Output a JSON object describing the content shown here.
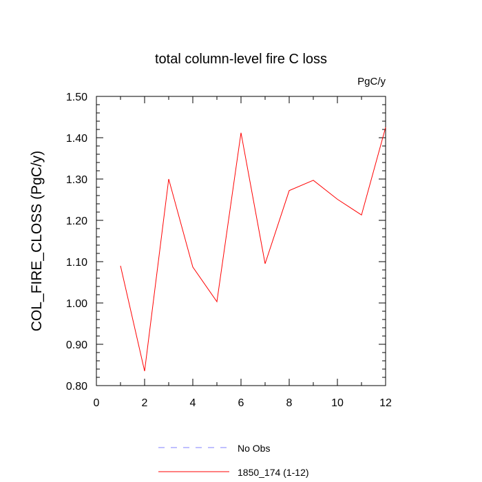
{
  "chart_data": {
    "type": "line",
    "title": "total column-level fire C loss",
    "units_label": "PgC/y",
    "xlabel": "",
    "ylabel": "COL_FIRE_CLOSS  (PgC/y)",
    "xlim": [
      0,
      12
    ],
    "ylim": [
      0.8,
      1.5
    ],
    "x_ticks": [
      0,
      2,
      4,
      6,
      8,
      10,
      12
    ],
    "x_tick_labels": [
      "0",
      "2",
      "4",
      "6",
      "8",
      "10",
      "12"
    ],
    "y_ticks": [
      0.8,
      0.9,
      1.0,
      1.1,
      1.2,
      1.3,
      1.4,
      1.5
    ],
    "y_tick_labels": [
      "0.80",
      "0.90",
      "1.00",
      "1.10",
      "1.20",
      "1.30",
      "1.40",
      "1.50"
    ],
    "grid": false,
    "legend_position": "bottom",
    "series": [
      {
        "name": "No Obs",
        "style": "dashed",
        "color": "#7f7fff",
        "x": [],
        "y": []
      },
      {
        "name": "1850_174 (1-12)",
        "style": "solid",
        "color": "#ff0000",
        "x": [
          1,
          2,
          3,
          4,
          5,
          6,
          7,
          8,
          9,
          10,
          11,
          12
        ],
        "y": [
          1.09,
          0.835,
          1.3,
          1.087,
          1.003,
          1.412,
          1.095,
          1.272,
          1.297,
          1.251,
          1.213,
          1.425
        ]
      }
    ]
  }
}
